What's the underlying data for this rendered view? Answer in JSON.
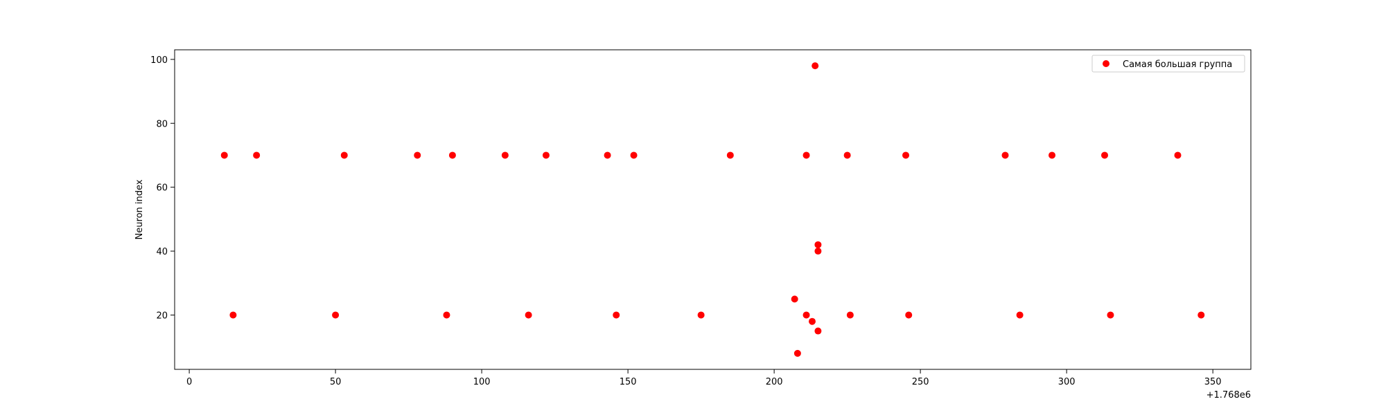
{
  "chart_data": {
    "type": "scatter",
    "title": "",
    "xlabel": "",
    "ylabel": "Neuron index",
    "x_offset_label": "+1.768e6",
    "xlim": [
      -5,
      363
    ],
    "ylim": [
      3,
      103
    ],
    "xticks": [
      0,
      50,
      100,
      150,
      200,
      250,
      300,
      350
    ],
    "yticks": [
      20,
      40,
      60,
      80,
      100
    ],
    "grid": false,
    "legend_position": "top-right",
    "series": [
      {
        "name": "Самая большая группа",
        "color": "#ff0000",
        "marker": "circle",
        "x": [
          12,
          23,
          53,
          78,
          90,
          108,
          122,
          143,
          152,
          185,
          211,
          225,
          245,
          279,
          295,
          313,
          338,
          15,
          50,
          88,
          116,
          146,
          175,
          207,
          211,
          213,
          215,
          226,
          246,
          284,
          315,
          346,
          214,
          215,
          215,
          208
        ],
        "y": [
          70,
          70,
          70,
          70,
          70,
          70,
          70,
          70,
          70,
          70,
          70,
          70,
          70,
          70,
          70,
          70,
          70,
          20,
          20,
          20,
          20,
          20,
          20,
          25,
          20,
          18,
          15,
          20,
          20,
          20,
          20,
          20,
          98,
          40,
          42,
          8
        ]
      }
    ]
  }
}
